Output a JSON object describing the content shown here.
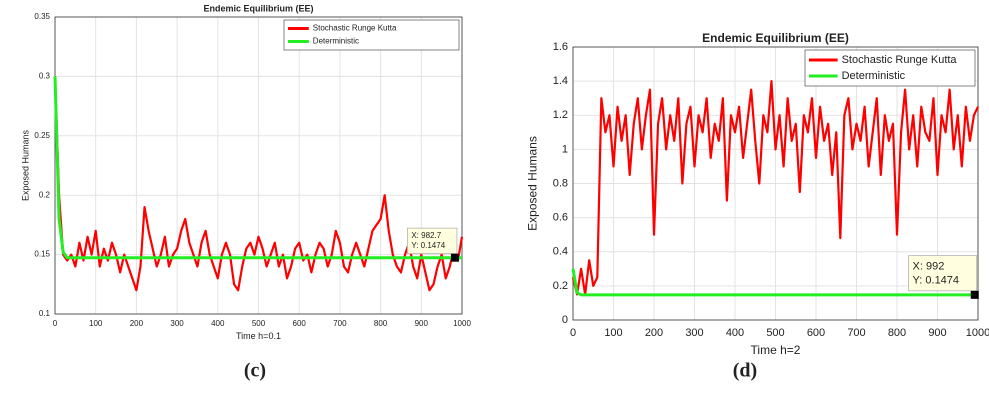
{
  "chart_data": [
    {
      "type": "line",
      "title": "Endemic Equilibrium (EE)",
      "xlabel": "Time h=0.1",
      "ylabel": "Exposed Humans",
      "caption": "(c)",
      "x": [
        0,
        10,
        20,
        30,
        40,
        50,
        60,
        70,
        80,
        90,
        100,
        110,
        120,
        130,
        140,
        150,
        160,
        170,
        180,
        190,
        200,
        210,
        220,
        230,
        240,
        250,
        260,
        270,
        280,
        290,
        300,
        310,
        320,
        330,
        340,
        350,
        360,
        370,
        380,
        390,
        400,
        410,
        420,
        430,
        440,
        450,
        460,
        470,
        480,
        490,
        500,
        510,
        520,
        530,
        540,
        550,
        560,
        570,
        580,
        590,
        600,
        610,
        620,
        630,
        640,
        650,
        660,
        670,
        680,
        690,
        700,
        710,
        720,
        730,
        740,
        750,
        760,
        770,
        780,
        790,
        800,
        810,
        820,
        830,
        840,
        850,
        860,
        870,
        880,
        890,
        900,
        910,
        920,
        930,
        940,
        950,
        960,
        970,
        980,
        990,
        1000
      ],
      "series": [
        {
          "name": "Stochastic Runge Kutta",
          "color": "#ff0000",
          "values": [
            0.3,
            0.2,
            0.15,
            0.145,
            0.15,
            0.14,
            0.16,
            0.145,
            0.165,
            0.15,
            0.17,
            0.14,
            0.155,
            0.145,
            0.16,
            0.15,
            0.135,
            0.15,
            0.14,
            0.13,
            0.12,
            0.14,
            0.19,
            0.17,
            0.155,
            0.14,
            0.15,
            0.165,
            0.14,
            0.15,
            0.155,
            0.17,
            0.18,
            0.16,
            0.15,
            0.14,
            0.16,
            0.17,
            0.15,
            0.14,
            0.13,
            0.15,
            0.16,
            0.15,
            0.125,
            0.12,
            0.14,
            0.155,
            0.16,
            0.15,
            0.165,
            0.155,
            0.14,
            0.15,
            0.16,
            0.14,
            0.15,
            0.13,
            0.14,
            0.155,
            0.16,
            0.145,
            0.15,
            0.135,
            0.15,
            0.16,
            0.155,
            0.14,
            0.15,
            0.17,
            0.16,
            0.14,
            0.135,
            0.15,
            0.16,
            0.15,
            0.14,
            0.155,
            0.17,
            0.175,
            0.18,
            0.2,
            0.17,
            0.15,
            0.14,
            0.135,
            0.15,
            0.16,
            0.14,
            0.13,
            0.15,
            0.135,
            0.12,
            0.125,
            0.14,
            0.15,
            0.13,
            0.14,
            0.155,
            0.145,
            0.165
          ]
        },
        {
          "name": "Deterministic",
          "color": "#22ee22",
          "values": [
            0.3,
            0.18,
            0.152,
            0.1474,
            0.1474,
            0.1474,
            0.1474,
            0.1474,
            0.1474,
            0.1474,
            0.1474,
            0.1474,
            0.1474,
            0.1474,
            0.1474,
            0.1474,
            0.1474,
            0.1474,
            0.1474,
            0.1474,
            0.1474,
            0.1474,
            0.1474,
            0.1474,
            0.1474,
            0.1474,
            0.1474,
            0.1474,
            0.1474,
            0.1474,
            0.1474,
            0.1474,
            0.1474,
            0.1474,
            0.1474,
            0.1474,
            0.1474,
            0.1474,
            0.1474,
            0.1474,
            0.1474,
            0.1474,
            0.1474,
            0.1474,
            0.1474,
            0.1474,
            0.1474,
            0.1474,
            0.1474,
            0.1474,
            0.1474,
            0.1474,
            0.1474,
            0.1474,
            0.1474,
            0.1474,
            0.1474,
            0.1474,
            0.1474,
            0.1474,
            0.1474,
            0.1474,
            0.1474,
            0.1474,
            0.1474,
            0.1474,
            0.1474,
            0.1474,
            0.1474,
            0.1474,
            0.1474,
            0.1474,
            0.1474,
            0.1474,
            0.1474,
            0.1474,
            0.1474,
            0.1474,
            0.1474,
            0.1474,
            0.1474,
            0.1474,
            0.1474,
            0.1474,
            0.1474,
            0.1474,
            0.1474,
            0.1474,
            0.1474,
            0.1474,
            0.1474,
            0.1474,
            0.1474,
            0.1474,
            0.1474,
            0.1474,
            0.1474,
            0.1474,
            0.1474,
            0.1474,
            0.1474
          ]
        }
      ],
      "xlim": [
        0,
        1000
      ],
      "xticks": [
        0,
        100,
        200,
        300,
        400,
        500,
        600,
        700,
        800,
        900,
        1000
      ],
      "ylim": [
        0.1,
        0.35
      ],
      "yticks": [
        0.1,
        0.15,
        0.2,
        0.25,
        0.3,
        0.35
      ],
      "grid": true,
      "legend": "upper right",
      "datatip": {
        "x": 982.7,
        "y": 0.1474,
        "labels": [
          "X: 982.7",
          "Y: 0.1474"
        ]
      }
    },
    {
      "type": "line",
      "title": "Endemic Equilibrium (EE)",
      "xlabel": "Time h=2",
      "ylabel": "Exposed Humans",
      "caption": "(d)",
      "x": [
        0,
        10,
        20,
        30,
        40,
        50,
        60,
        70,
        80,
        90,
        100,
        110,
        120,
        130,
        140,
        150,
        160,
        170,
        180,
        190,
        200,
        210,
        220,
        230,
        240,
        250,
        260,
        270,
        280,
        290,
        300,
        310,
        320,
        330,
        340,
        350,
        360,
        370,
        380,
        390,
        400,
        410,
        420,
        430,
        440,
        450,
        460,
        470,
        480,
        490,
        500,
        510,
        520,
        530,
        540,
        550,
        560,
        570,
        580,
        590,
        600,
        610,
        620,
        630,
        640,
        650,
        660,
        670,
        680,
        690,
        700,
        710,
        720,
        730,
        740,
        750,
        760,
        770,
        780,
        790,
        800,
        810,
        820,
        830,
        840,
        850,
        860,
        870,
        880,
        890,
        900,
        910,
        920,
        930,
        940,
        950,
        960,
        970,
        980,
        990,
        1000
      ],
      "series": [
        {
          "name": "Stochastic Runge Kutta",
          "color": "#ff0000",
          "values": [
            0.25,
            0.15,
            0.3,
            0.15,
            0.35,
            0.2,
            0.25,
            1.3,
            1.1,
            1.2,
            0.9,
            1.25,
            1.05,
            1.2,
            0.85,
            1.15,
            1.3,
            1.0,
            1.2,
            1.35,
            0.5,
            1.15,
            1.3,
            1.0,
            1.2,
            1.05,
            1.3,
            0.8,
            1.15,
            1.25,
            0.9,
            1.2,
            1.1,
            1.3,
            0.95,
            1.15,
            1.05,
            1.3,
            0.7,
            1.2,
            1.1,
            1.25,
            0.95,
            1.15,
            1.35,
            1.05,
            0.8,
            1.2,
            1.1,
            1.4,
            1.0,
            1.2,
            0.9,
            1.3,
            1.05,
            1.15,
            0.75,
            1.2,
            1.1,
            1.3,
            0.95,
            1.25,
            1.05,
            1.15,
            0.85,
            1.1,
            0.48,
            1.2,
            1.3,
            1.0,
            1.15,
            1.05,
            1.25,
            0.9,
            1.1,
            1.3,
            0.85,
            1.2,
            1.05,
            1.15,
            0.5,
            1.1,
            1.35,
            1.0,
            1.2,
            0.9,
            1.25,
            1.1,
            1.05,
            1.3,
            0.85,
            1.2,
            1.1,
            1.35,
            1.0,
            1.2,
            0.9,
            1.25,
            1.05,
            1.2,
            1.25
          ]
        },
        {
          "name": "Deterministic",
          "color": "#22ee22",
          "values": [
            0.3,
            0.16,
            0.1474,
            0.1474,
            0.1474,
            0.1474,
            0.1474,
            0.1474,
            0.1474,
            0.1474,
            0.1474,
            0.1474,
            0.1474,
            0.1474,
            0.1474,
            0.1474,
            0.1474,
            0.1474,
            0.1474,
            0.1474,
            0.1474,
            0.1474,
            0.1474,
            0.1474,
            0.1474,
            0.1474,
            0.1474,
            0.1474,
            0.1474,
            0.1474,
            0.1474,
            0.1474,
            0.1474,
            0.1474,
            0.1474,
            0.1474,
            0.1474,
            0.1474,
            0.1474,
            0.1474,
            0.1474,
            0.1474,
            0.1474,
            0.1474,
            0.1474,
            0.1474,
            0.1474,
            0.1474,
            0.1474,
            0.1474,
            0.1474,
            0.1474,
            0.1474,
            0.1474,
            0.1474,
            0.1474,
            0.1474,
            0.1474,
            0.1474,
            0.1474,
            0.1474,
            0.1474,
            0.1474,
            0.1474,
            0.1474,
            0.1474,
            0.1474,
            0.1474,
            0.1474,
            0.1474,
            0.1474,
            0.1474,
            0.1474,
            0.1474,
            0.1474,
            0.1474,
            0.1474,
            0.1474,
            0.1474,
            0.1474,
            0.1474,
            0.1474,
            0.1474,
            0.1474,
            0.1474,
            0.1474,
            0.1474,
            0.1474,
            0.1474,
            0.1474,
            0.1474,
            0.1474,
            0.1474,
            0.1474,
            0.1474,
            0.1474,
            0.1474,
            0.1474,
            0.1474,
            0.1474,
            0.1474
          ]
        }
      ],
      "xlim": [
        0,
        1000
      ],
      "xticks": [
        0,
        100,
        200,
        300,
        400,
        500,
        600,
        700,
        800,
        900,
        1000
      ],
      "ylim": [
        0,
        1.6
      ],
      "yticks": [
        0,
        0.2,
        0.4,
        0.6,
        0.8,
        1,
        1.2,
        1.4,
        1.6
      ],
      "grid": true,
      "legend": "upper right",
      "datatip": {
        "x": 992,
        "y": 0.1474,
        "labels": [
          "X: 992",
          "Y: 0.1474"
        ]
      }
    }
  ]
}
